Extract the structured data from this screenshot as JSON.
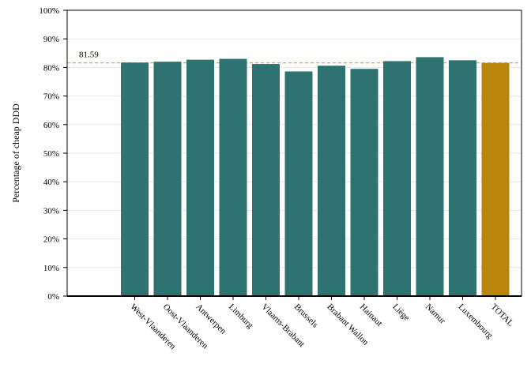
{
  "chart_data": {
    "type": "bar",
    "title": "",
    "xlabel": "",
    "ylabel": "Percentage of cheap DDD",
    "ylim": [
      0,
      100
    ],
    "yticks": [
      "0%",
      "10%",
      "20%",
      "30%",
      "40%",
      "50%",
      "60%",
      "70%",
      "80%",
      "90%",
      "100%"
    ],
    "categories": [
      "West-Vlaanderen",
      "Oost-Vlaanderen",
      "Antwerpen",
      "Limburg",
      "Vlaams-Brabant",
      "Brussels",
      "Brabant Wallon",
      "Hainaut",
      "Liège",
      "Namur",
      "Luxembourg",
      "TOTAL"
    ],
    "values": [
      81.7,
      82.0,
      82.7,
      83.0,
      81.2,
      78.6,
      80.6,
      79.5,
      82.2,
      83.6,
      82.5,
      81.59
    ],
    "reference_line": {
      "value": 81.59,
      "label": "81.59"
    },
    "grid": true,
    "colors": {
      "bar": "#2e7272",
      "total_bar": "#b8860b",
      "reference_line": "#d4a84a",
      "grid": "#e6e6e6",
      "axis": "#000000"
    }
  }
}
